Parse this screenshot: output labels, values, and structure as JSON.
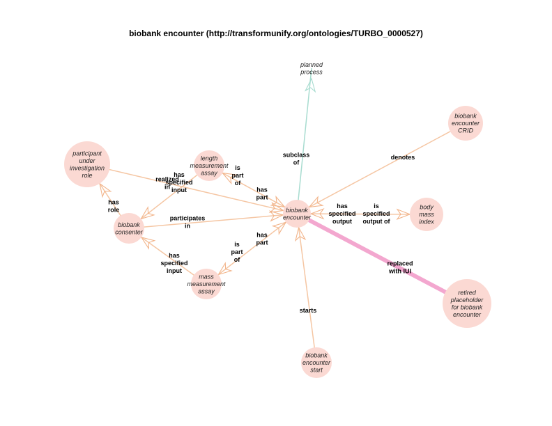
{
  "title": "biobank encounter (http://transformunify.org/ontologies/TURBO_0000527)",
  "colors": {
    "node_fill": "#fbd9d3",
    "edge_default": "#f5c6a3",
    "edge_subclass": "#a8dcd0",
    "edge_replaced": "#f3a7cf",
    "arrow": "#f2b48a"
  },
  "nodes": {
    "planned_process": [
      "planned",
      "process"
    ],
    "crid": [
      "biobank",
      "encounter",
      "CRID"
    ],
    "participant": [
      "participant",
      "under",
      "investigation",
      "role"
    ],
    "length_assay": [
      "length",
      "measurement",
      "assay"
    ],
    "encounter": [
      "biobank",
      "encounter"
    ],
    "consenter": [
      "biobank",
      "consenter"
    ],
    "bmi": [
      "body",
      "mass",
      "index"
    ],
    "mass_assay": [
      "mass",
      "measurement",
      "assay"
    ],
    "retired": [
      "retired",
      "placeholder",
      "for biobank",
      "encounter"
    ],
    "start": [
      "biobank",
      "encounter",
      "start"
    ]
  },
  "edge_labels": {
    "subclass_of": [
      "subclass",
      "of"
    ],
    "denotes": [
      "denotes"
    ],
    "realizes": [
      "realized",
      "in"
    ],
    "has_role": [
      "has",
      "role"
    ],
    "length_specified_input": [
      "has",
      "specified",
      "input"
    ],
    "length_is_part_of": [
      "is",
      "part",
      "of"
    ],
    "length_has_part": [
      "has",
      "part"
    ],
    "participates_in": [
      "participates",
      "in"
    ],
    "has_specified_output": [
      "has",
      "specified",
      "output"
    ],
    "is_specified_output_of": [
      "is",
      "specified",
      "output of"
    ],
    "mass_specified_input": [
      "has",
      "specified",
      "input"
    ],
    "mass_is_part_of": [
      "is",
      "part",
      "of"
    ],
    "mass_has_part": [
      "has",
      "part"
    ],
    "replaced_with_iui": [
      "replaced",
      "with IUI"
    ],
    "starts": [
      "starts"
    ]
  }
}
